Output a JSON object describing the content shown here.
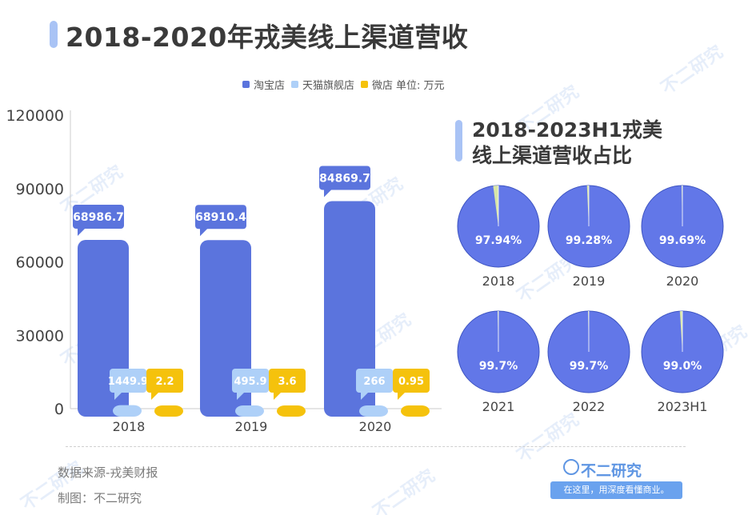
{
  "title": "2018-2020年戎美线上渠道营收",
  "legend": {
    "items": [
      "淘宝店",
      "天猫旗舰店",
      "微店"
    ],
    "unit": "单位: 万元"
  },
  "colors": {
    "taobao": "#5b74dd",
    "tmall": "#aed0f8",
    "weidian": "#f5c20c"
  },
  "chart_data": [
    {
      "type": "bar",
      "title": "2018-2020年戎美线上渠道营收",
      "categories": [
        "2018",
        "2019",
        "2020"
      ],
      "series": [
        {
          "name": "淘宝店",
          "values": [
            68986.7,
            68910.4,
            84869.7
          ],
          "labels": [
            "68986.7",
            "68910.4",
            "84869.7"
          ]
        },
        {
          "name": "天猫旗舰店",
          "values": [
            1449.9,
            495.9,
            266
          ],
          "labels": [
            "1449.9",
            "495.9",
            "266"
          ]
        },
        {
          "name": "微店",
          "values": [
            2.2,
            3.6,
            0.95
          ],
          "labels": [
            "2.2",
            "3.6",
            "0.95"
          ]
        }
      ],
      "yticks": [
        "0",
        "30000",
        "60000",
        "90000",
        "120000"
      ],
      "ylim": [
        0,
        120000
      ],
      "unit": "单位: 万元",
      "xlabel": "",
      "ylabel": ""
    },
    {
      "type": "pie",
      "title": "2018-2023H1戎美线上渠道营收占比",
      "charts": [
        {
          "year": "2018",
          "label": "97.94%",
          "value": 97.94
        },
        {
          "year": "2019",
          "label": "99.28%",
          "value": 99.28
        },
        {
          "year": "2020",
          "label": "99.69%",
          "value": 99.69
        },
        {
          "year": "2021",
          "label": "99.7%",
          "value": 99.7
        },
        {
          "year": "2022",
          "label": "99.7%",
          "value": 99.7
        },
        {
          "year": "2023H1",
          "label": "99.0%",
          "value": 99.0
        }
      ]
    }
  ],
  "subtitle": {
    "line1": "2018-2023H1戎美",
    "line2": "线上渠道营收占比"
  },
  "footer": {
    "source": "数据来源-戎美财报",
    "credit": "制图：不二研究"
  },
  "logo": {
    "brand": "不二研究",
    "slogan": "在这里，用深度看懂商业。"
  },
  "watermark": "不二研究"
}
